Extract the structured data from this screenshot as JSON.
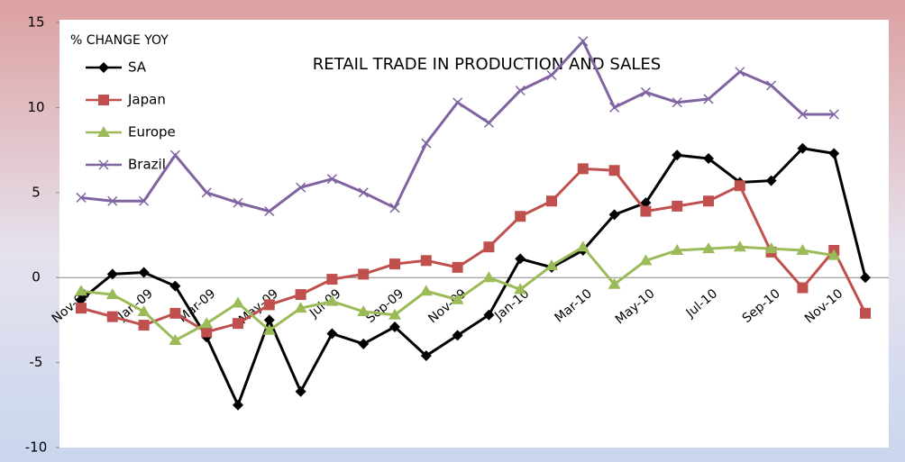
{
  "chart_data": {
    "type": "line",
    "title": "RETAIL TRADE IN PRODUCTION AND SALES",
    "y_label": "% CHANGE YOY",
    "categories": [
      "Nov-08",
      null,
      "Jan-09",
      null,
      "Mar-09",
      null,
      "May-09",
      null,
      "Jul-09",
      null,
      "Sep-09",
      null,
      "Nov-09",
      null,
      "Jan-10",
      null,
      "Mar-10",
      null,
      "May-10",
      null,
      "Jul-10",
      null,
      "Sep-10",
      null,
      "Nov-10",
      null
    ],
    "series": [
      {
        "name": "SA",
        "color": "#000000",
        "marker": "diamond",
        "values": [
          -1.3,
          0.2,
          0.3,
          -0.5,
          -3.5,
          -7.5,
          -2.5,
          -6.7,
          -3.3,
          -3.9,
          -2.9,
          -4.6,
          -3.4,
          -2.2,
          1.1,
          0.6,
          1.6,
          3.7,
          4.4,
          7.2,
          7.0,
          5.6,
          5.7,
          7.6,
          7.3,
          0
        ]
      },
      {
        "name": "Japan",
        "color": "#c0504d",
        "marker": "square",
        "values": [
          -1.8,
          -2.3,
          -2.8,
          -2.1,
          -3.2,
          -2.7,
          -1.6,
          -1.0,
          -0.1,
          0.2,
          0.8,
          1.0,
          0.6,
          1.8,
          3.6,
          4.5,
          6.4,
          6.3,
          3.9,
          4.2,
          4.5,
          5.4,
          1.5,
          -0.6,
          1.6,
          -2.1
        ]
      },
      {
        "name": "Europe",
        "color": "#9bbb59",
        "marker": "triangle",
        "values": [
          -0.8,
          -1.0,
          -2.0,
          -3.7,
          -2.7,
          -1.5,
          -3.1,
          -1.8,
          -1.4,
          -2.0,
          -2.2,
          -0.8,
          -1.3,
          0.0,
          -0.7,
          0.7,
          1.8,
          -0.4,
          1.0,
          1.6,
          1.7,
          1.8,
          1.7,
          1.6,
          1.3,
          null
        ]
      },
      {
        "name": "Brazil",
        "color": "#8064a2",
        "marker": "x",
        "values": [
          4.7,
          4.5,
          4.5,
          7.2,
          5.0,
          4.4,
          3.9,
          5.3,
          5.8,
          5.0,
          4.1,
          7.9,
          10.3,
          9.1,
          11.0,
          11.9,
          13.9,
          10.0,
          10.9,
          10.3,
          10.5,
          12.1,
          11.3,
          9.6,
          9.6,
          null
        ]
      }
    ],
    "ylim": [
      -10,
      15
    ],
    "yticks": [
      -10,
      -5,
      0,
      5,
      10,
      15
    ],
    "legend": "top-left",
    "grid": false
  }
}
